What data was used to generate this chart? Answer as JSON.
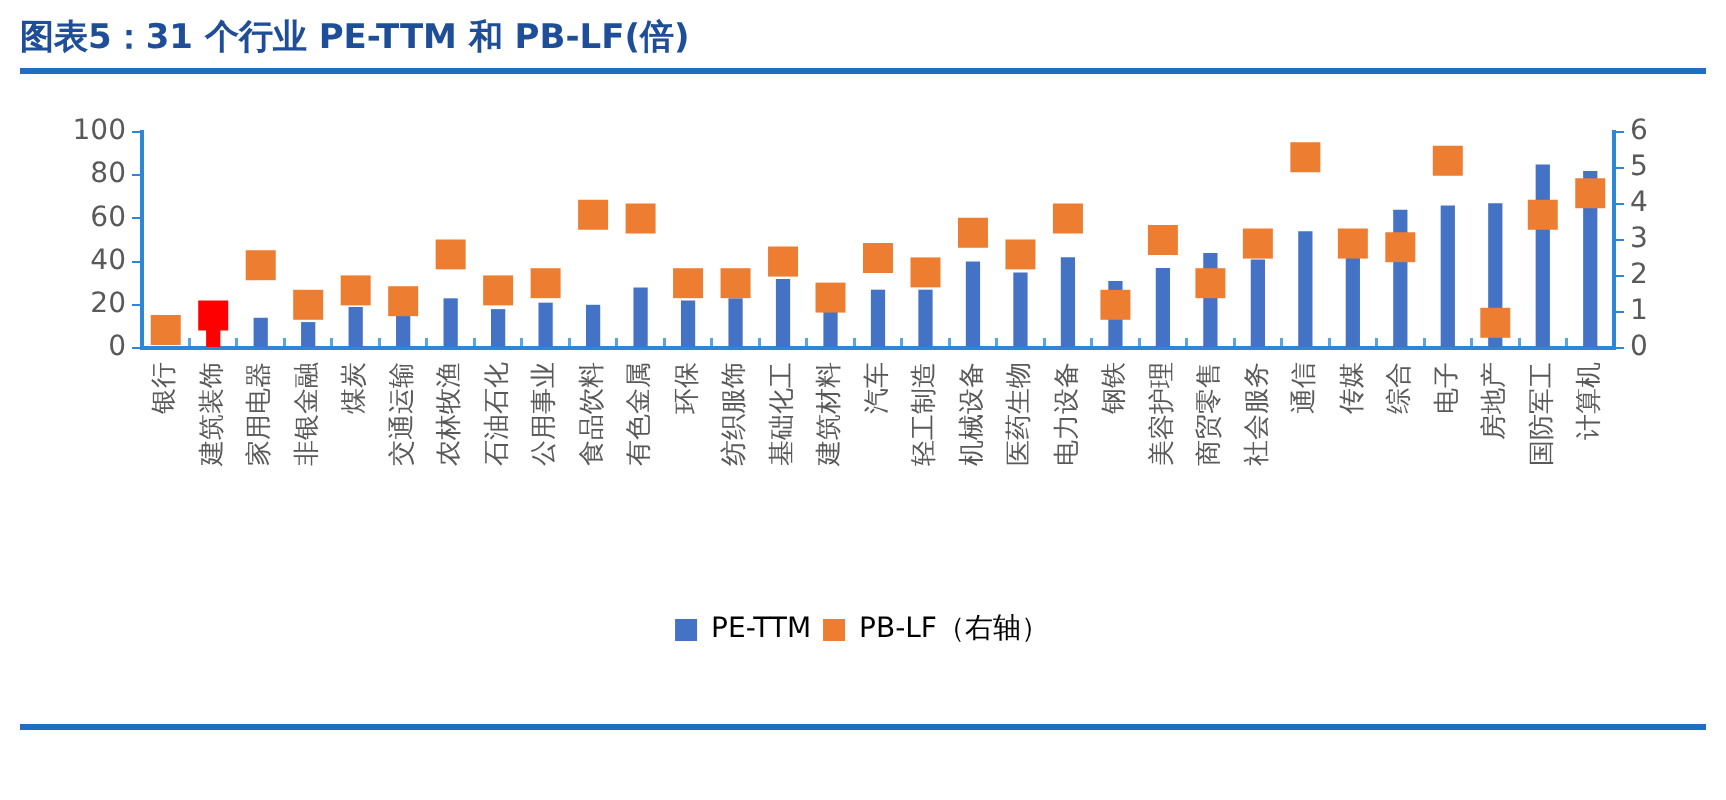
{
  "chart_data": {
    "type": "bar",
    "title": "图表5：31 个行业 PE-TTM 和 PB-LF(倍)",
    "categories": [
      "银行",
      "建筑装饰",
      "家用电器",
      "非银金融",
      "煤炭",
      "交通运输",
      "农林牧渔",
      "石油石化",
      "公用事业",
      "食品饮料",
      "有色金属",
      "环保",
      "纺织服饰",
      "基础化工",
      "建筑材料",
      "汽车",
      "轻工制造",
      "机械设备",
      "医药生物",
      "电力设备",
      "钢铁",
      "美容护理",
      "商贸零售",
      "社会服务",
      "通信",
      "传媒",
      "综合",
      "电子",
      "房地产",
      "国防军工",
      "计算机"
    ],
    "series": [
      {
        "name": "PE-TTM",
        "type": "bar",
        "color": "#4472c4",
        "colors": [
          "#4472c4",
          "#ff0000",
          "#4472c4",
          "#4472c4",
          "#4472c4",
          "#4472c4",
          "#4472c4",
          "#4472c4",
          "#4472c4",
          "#4472c4",
          "#4472c4",
          "#4472c4",
          "#4472c4",
          "#4472c4",
          "#4472c4",
          "#4472c4",
          "#4472c4",
          "#4472c4",
          "#4472c4",
          "#4472c4",
          "#4472c4",
          "#4472c4",
          "#4472c4",
          "#4472c4",
          "#4472c4",
          "#4472c4",
          "#4472c4",
          "#4472c4",
          "#4472c4",
          "#4472c4",
          "#4472c4"
        ],
        "values": [
          null,
          9,
          14,
          12,
          19,
          15,
          23,
          18,
          21,
          20,
          28,
          22,
          23,
          32,
          17,
          27,
          27,
          40,
          35,
          42,
          31,
          37,
          44,
          41,
          54,
          42,
          64,
          66,
          67,
          85,
          82
        ]
      },
      {
        "name": "PB-LF（右轴）",
        "type": "scatter",
        "axis": "y2",
        "marker": "square",
        "color": "#ed7d31",
        "x": [
          "银行",
          "建筑装饰",
          "家用电器",
          "非银金融",
          "煤炭",
          "交通运输",
          "农林牧渔",
          "石油石化",
          "公用事业",
          "食品饮料",
          "有色金属",
          "环保",
          "纺织服饰",
          "基础化工",
          "建筑材料",
          "汽车",
          "轻工制造",
          "机械设备",
          "医药生物",
          "电力设备",
          "钢铁",
          "美容护理",
          "商贸零售",
          "社会服务",
          "通信",
          "传媒",
          "综合",
          "电子",
          "房地产",
          "国防军工",
          "计算机"
        ],
        "colors": [
          "#ed7d31",
          "#ff0000",
          "#ed7d31",
          "#ed7d31",
          "#ed7d31",
          "#ed7d31",
          "#ed7d31",
          "#ed7d31",
          "#ed7d31",
          "#ed7d31",
          "#ed7d31",
          "#ed7d31",
          "#ed7d31",
          "#ed7d31",
          "#ed7d31",
          "#ed7d31",
          "#ed7d31",
          "#ed7d31",
          "#ed7d31",
          "#ed7d31",
          "#ed7d31",
          "#ed7d31",
          "#ed7d31",
          "#ed7d31",
          "#ed7d31",
          "#ed7d31",
          "#ed7d31",
          "#ed7d31",
          "#ed7d31",
          "#ed7d31",
          "#ed7d31"
        ],
        "values": [
          0.5,
          0.9,
          2.3,
          1.2,
          1.6,
          1.3,
          2.6,
          1.6,
          1.8,
          3.7,
          3.6,
          1.8,
          1.8,
          2.4,
          1.4,
          2.5,
          2.1,
          3.2,
          2.6,
          3.6,
          1.2,
          3.0,
          1.8,
          2.9,
          5.3,
          2.9,
          2.8,
          5.2,
          0.7,
          3.7,
          4.3
        ]
      }
    ],
    "ylim": [
      0,
      100
    ],
    "yticks": [
      0,
      20,
      40,
      60,
      80,
      100
    ],
    "y2lim": [
      0,
      6
    ],
    "y2ticks": [
      0,
      1,
      2,
      3,
      4,
      5,
      6
    ],
    "legend": "bottom"
  }
}
